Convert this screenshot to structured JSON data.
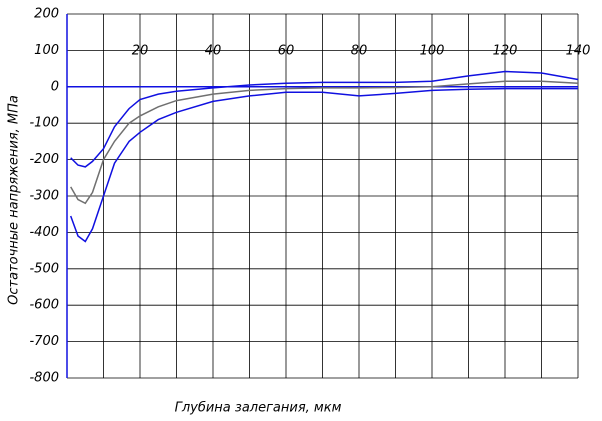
{
  "chart_data": {
    "type": "line",
    "x_label": "Глубина залегания, мкм",
    "y_label": "Остаточные напряжения, МПа",
    "x": [
      1,
      3,
      5,
      7,
      10,
      13,
      17,
      20,
      25,
      30,
      40,
      50,
      60,
      70,
      80,
      90,
      100,
      110,
      120,
      130,
      140
    ],
    "series": [
      {
        "color": "#1010e0",
        "values": [
          -195,
          -215,
          -220,
          -205,
          -170,
          -110,
          -60,
          -35,
          -20,
          -12,
          -3,
          5,
          10,
          12,
          12,
          12,
          15,
          30,
          42,
          38,
          20
        ]
      },
      {
        "color": "#707070",
        "values": [
          -275,
          -310,
          -320,
          -290,
          -200,
          -150,
          -100,
          -80,
          -55,
          -38,
          -20,
          -10,
          -5,
          -3,
          -3,
          -2,
          0,
          8,
          15,
          15,
          10
        ]
      },
      {
        "color": "#1010e0",
        "values": [
          -355,
          -410,
          -425,
          -390,
          -300,
          -210,
          -150,
          -125,
          -90,
          -70,
          -40,
          -25,
          -15,
          -15,
          -25,
          -18,
          -10,
          -7,
          -5,
          -5,
          -5
        ]
      }
    ],
    "xlim": [
      0,
      140
    ],
    "xticks": [
      20,
      40,
      60,
      80,
      100,
      120,
      140
    ],
    "ylim": [
      -800,
      200
    ],
    "yticks": [
      -800,
      -700,
      -600,
      -500,
      -400,
      -300,
      -200,
      -100,
      0,
      100,
      200
    ],
    "grid": true,
    "baseline_color": "#1010e0"
  }
}
